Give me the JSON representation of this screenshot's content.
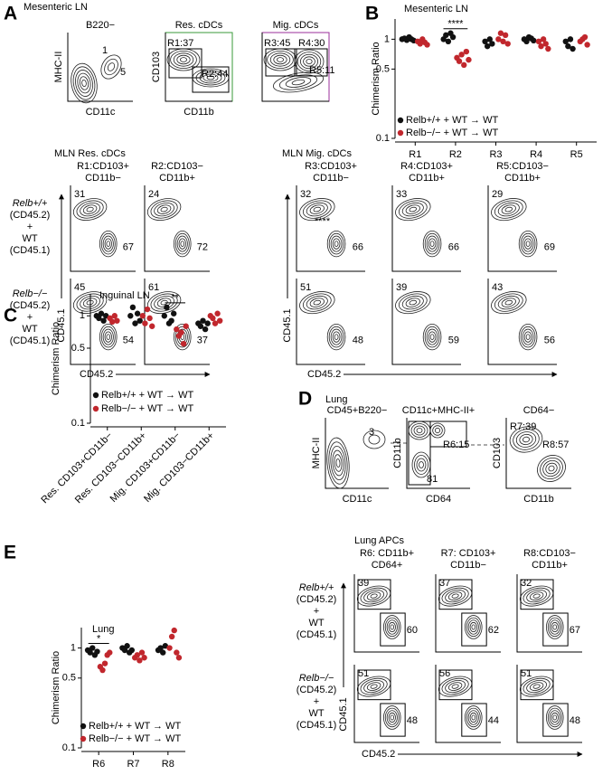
{
  "panel_letters": [
    "A",
    "B",
    "C",
    "D",
    "E"
  ],
  "panel_a": {
    "title": "Mesenteric LN",
    "plots": [
      {
        "title": "B220−",
        "color": "#000000",
        "gates": [
          "1",
          "5"
        ],
        "x_label": "CD11c",
        "y_label": "MHC-II"
      },
      {
        "title": "Res. cDCs",
        "color": "#3a9a3a",
        "gates": [
          "R1:37",
          "R2:44"
        ],
        "x_label": "CD11b",
        "y_label": "CD103"
      },
      {
        "title": "Mig. cDCs",
        "color": "#9b2f9b",
        "gates": [
          "R3:45",
          "R4:30",
          "R5:11"
        ]
      }
    ]
  },
  "panel_d": {
    "title": "Lung",
    "plots": [
      {
        "title": "CD45+B220−",
        "color": "#000000",
        "gates": [
          "3"
        ],
        "x_label": "CD11c",
        "y_label": "MHC-II"
      },
      {
        "title": "CD11c+MHC-II+",
        "color": "#000000",
        "gates": [
          "R6:15",
          "81"
        ],
        "x_label": "CD64",
        "y_label": "CD11b"
      },
      {
        "title": "CD64−",
        "color": "#000000",
        "gates": [
          "R7:39",
          "R8:57"
        ],
        "x_label": "CD11b",
        "y_label": "CD103"
      }
    ]
  },
  "grids": [
    {
      "title": "MLN Res. cDCs",
      "color": "#3a9a3a",
      "headers": [
        [
          "R1:CD103+",
          "CD11b−"
        ],
        [
          "R2:CD103−",
          "CD11b+"
        ]
      ],
      "row_labels": [
        [
          "Relb+/+",
          "(CD45.2)",
          "+",
          "WT",
          "(CD45.1)"
        ],
        [
          "Relb−/−",
          "(CD45.2)",
          "+",
          "WT",
          "(CD45.1)"
        ]
      ],
      "cells": [
        [
          {
            "top": 31,
            "bottom": 67
          },
          {
            "top": 24,
            "bottom": 72
          }
        ],
        [
          {
            "top": 45,
            "bottom": 54
          },
          {
            "top": 61,
            "bottom": 37
          }
        ]
      ],
      "x_label": "CD45.2",
      "y_label": "CD45.1"
    },
    {
      "title": "MLN Mig. cDCs",
      "color": "#9b2f9b",
      "headers": [
        [
          "R3:CD103+",
          "CD11b−"
        ],
        [
          "R4:CD103+",
          "CD11b+"
        ],
        [
          "R5:CD103−",
          "CD11b+"
        ]
      ],
      "cells": [
        [
          {
            "top": 32,
            "bottom": 66,
            "mark": "****"
          },
          {
            "top": 33,
            "bottom": 66
          },
          {
            "top": 29,
            "bottom": 69
          }
        ],
        [
          {
            "top": 51,
            "bottom": 48
          },
          {
            "top": 39,
            "bottom": 59
          },
          {
            "top": 43,
            "bottom": 56
          }
        ]
      ],
      "x_label": "CD45.2",
      "y_label": "CD45.1"
    },
    {
      "title": "Lung APCs",
      "color": "#000000",
      "headers": [
        [
          "R6: CD11b+",
          "CD64+"
        ],
        [
          "R7: CD103+",
          "CD11b−"
        ],
        [
          "R8:CD103−",
          "CD11b+"
        ]
      ],
      "row_labels": [
        [
          "Relb+/+",
          "(CD45.2)",
          "+",
          "WT",
          "(CD45.1)"
        ],
        [
          "Relb−/−",
          "(CD45.2)",
          "+",
          "WT",
          "(CD45.1)"
        ]
      ],
      "cells": [
        [
          {
            "top": 39,
            "bottom": 60
          },
          {
            "top": 37,
            "bottom": 62
          },
          {
            "top": 32,
            "bottom": 67
          }
        ],
        [
          {
            "top": 51,
            "bottom": 48
          },
          {
            "top": 56,
            "bottom": 44
          },
          {
            "top": 51,
            "bottom": 48
          }
        ]
      ],
      "x_label": "CD45.2",
      "y_label": "CD45.1"
    }
  ],
  "chart_data": [
    {
      "type": "strip",
      "title": "Mesenteric LN",
      "y_label": "Chimerism Ratio",
      "log_y": true,
      "ylim": [
        0.1,
        1.6
      ],
      "yticks": [
        0.1,
        0.5,
        1
      ],
      "categories": [
        "R1",
        "R2",
        "R3",
        "R4",
        "R5"
      ],
      "series": [
        {
          "name": "Relb+/+ + WT → WT",
          "color": "#111111",
          "values": [
            [
              1.0,
              1.02,
              0.98,
              1.05,
              1.0,
              0.97
            ],
            [
              1.0,
              1.1,
              0.95,
              1.15,
              1.05
            ],
            [
              0.95,
              0.85,
              1.0,
              0.9
            ],
            [
              1.0,
              0.95,
              1.05,
              1.02,
              0.97
            ],
            [
              0.95,
              0.85,
              1.0,
              0.8
            ]
          ]
        },
        {
          "name": "Relb−/− + WT → WT",
          "color": "#c1272d",
          "values": [
            [
              0.95,
              0.9,
              1.0,
              0.93,
              0.88
            ],
            [
              0.65,
              0.6,
              0.7,
              0.55,
              0.75,
              0.62
            ],
            [
              1.0,
              1.15,
              0.95,
              1.1,
              0.9
            ],
            [
              0.95,
              0.85,
              1.0,
              0.9,
              0.8
            ],
            [
              0.95,
              1.0,
              1.05,
              0.88
            ]
          ]
        }
      ],
      "annotations": [
        {
          "category": "R2",
          "text": "****"
        }
      ]
    },
    {
      "type": "strip",
      "title": "Inguinal LN",
      "y_label": "Chimerism Ratio",
      "log_y": true,
      "ylim": [
        0.1,
        1.6
      ],
      "yticks": [
        0.1,
        0.5,
        1
      ],
      "categories": [
        "Res. CD103+CD11b−",
        "Res. CD103−CD11b+",
        "Mig. CD103+CD11b−",
        "Mig. CD103−CD11b+"
      ],
      "series": [
        {
          "name": "Relb+/+ + WT → WT",
          "color": "#111111",
          "values": [
            [
              1.0,
              0.95,
              1.05,
              0.9,
              1.0
            ],
            [
              1.0,
              1.2,
              0.85,
              1.05,
              0.9
            ],
            [
              1.0,
              1.2,
              0.85,
              0.9,
              1.05
            ],
            [
              0.85,
              0.8,
              0.9,
              0.75,
              0.85
            ]
          ]
        },
        {
          "name": "Relb−/− + WT → WT",
          "color": "#c1272d",
          "values": [
            [
              0.95,
              0.88,
              1.0,
              0.9
            ],
            [
              1.0,
              0.85,
              1.15,
              0.95,
              0.8
            ],
            [
              0.75,
              0.65,
              0.7,
              0.55,
              0.8
            ],
            [
              1.0,
              0.95,
              0.85,
              1.05,
              0.9
            ]
          ]
        }
      ],
      "annotations": [
        {
          "category": "Mig. CD103+CD11b−",
          "text": "**"
        }
      ]
    },
    {
      "type": "strip",
      "title": "Lung",
      "y_label": "Chimerism Ratio",
      "log_y": true,
      "ylim": [
        0.1,
        1.6
      ],
      "yticks": [
        0.1,
        0.5,
        1
      ],
      "categories": [
        "R6",
        "R7",
        "R8"
      ],
      "series": [
        {
          "name": "Relb+/+ + WT → WT",
          "color": "#111111",
          "values": [
            [
              0.95,
              0.9,
              1.0,
              0.85,
              0.92
            ],
            [
              1.0,
              0.95,
              1.05,
              0.9,
              0.95
            ],
            [
              0.95,
              1.0,
              0.9,
              1.05
            ]
          ]
        },
        {
          "name": "Relb−/− + WT → WT",
          "color": "#c1272d",
          "values": [
            [
              0.65,
              0.6,
              0.7,
              0.85,
              0.9
            ],
            [
              0.8,
              0.85,
              0.75,
              0.9,
              0.8
            ],
            [
              1.0,
              1.3,
              1.5,
              0.9,
              0.8
            ]
          ]
        }
      ],
      "annotations": [
        {
          "category": "R6",
          "text": "*"
        }
      ]
    }
  ]
}
